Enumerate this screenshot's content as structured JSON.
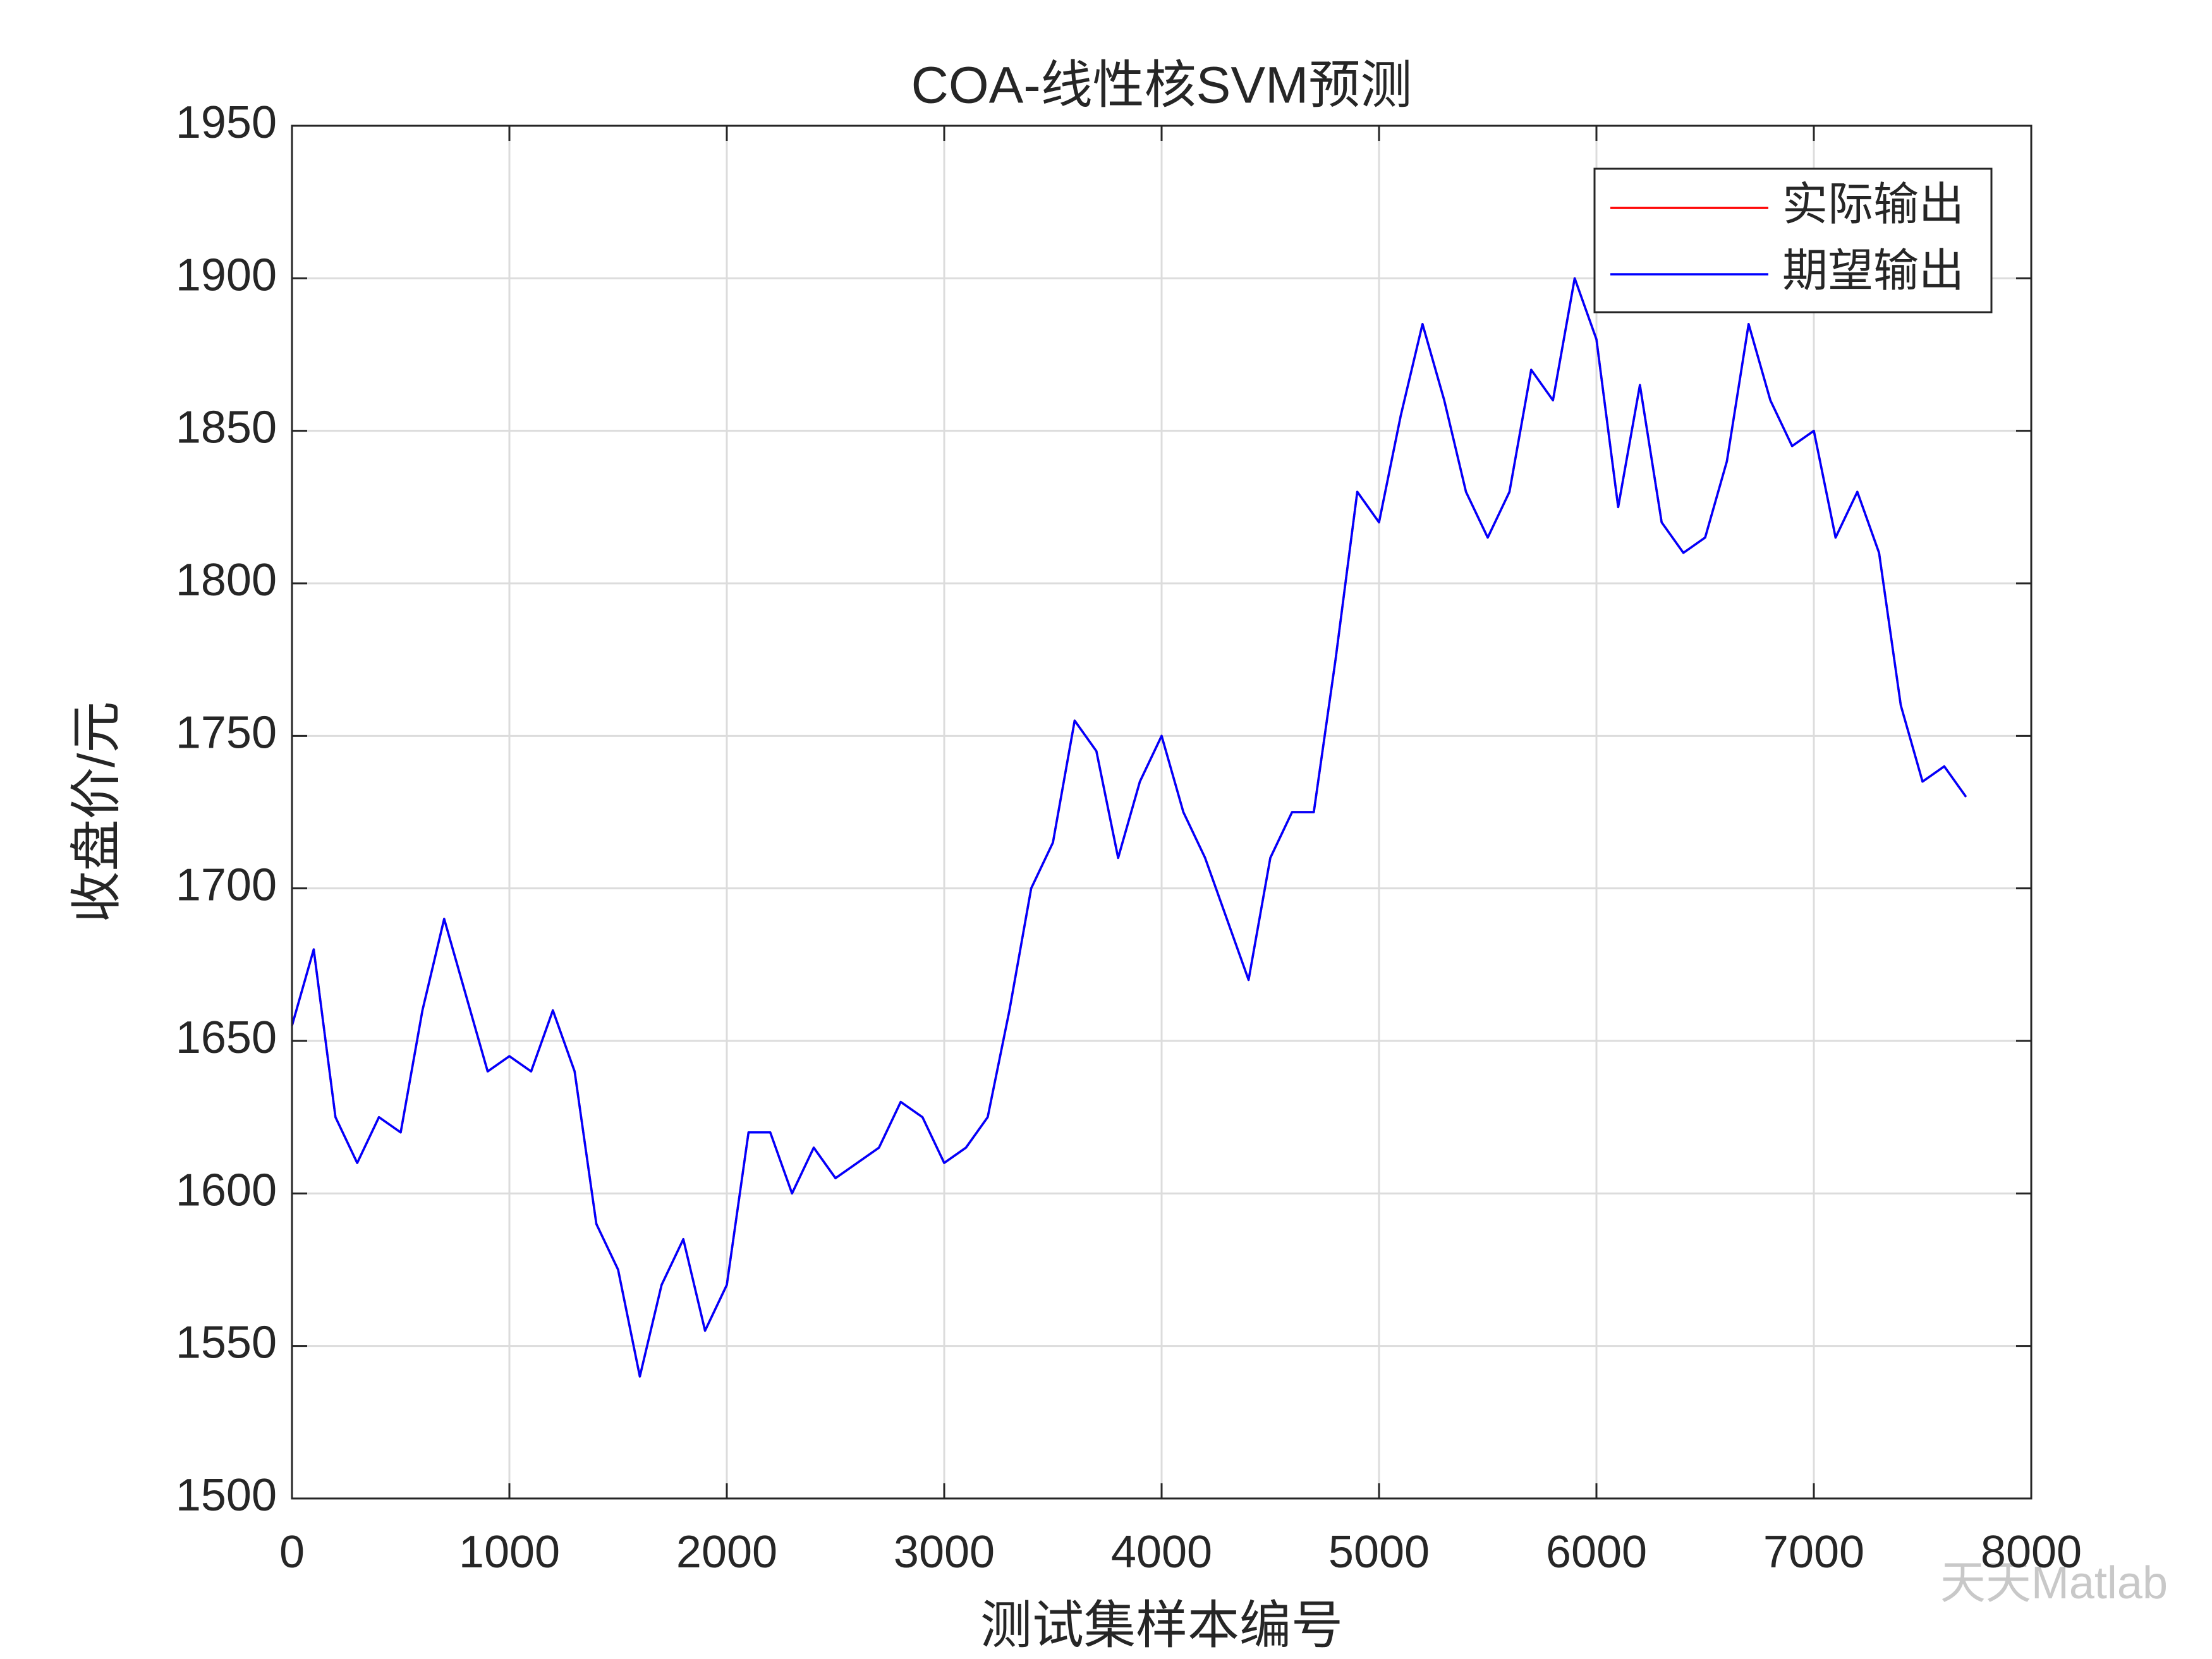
{
  "chart_data": {
    "type": "line",
    "title": "COA-线性核SVM预测",
    "xlabel": "测试集样本编号",
    "ylabel": "收盘价/元",
    "watermark": "天天Matlab",
    "x": [
      0,
      100,
      200,
      300,
      400,
      500,
      600,
      700,
      800,
      900,
      1000,
      1100,
      1200,
      1300,
      1400,
      1500,
      1600,
      1700,
      1800,
      1900,
      2000,
      2100,
      2200,
      2300,
      2400,
      2500,
      2600,
      2700,
      2800,
      2900,
      3000,
      3100,
      3200,
      3300,
      3400,
      3500,
      3600,
      3700,
      3800,
      3900,
      4000,
      4100,
      4200,
      4300,
      4400,
      4500,
      4600,
      4700,
      4800,
      4900,
      5000,
      5100,
      5200,
      5300,
      5400,
      5500,
      5600,
      5700,
      5800,
      5900,
      6000,
      6100,
      6200,
      6300,
      6400,
      6500,
      6600,
      6700,
      6800,
      6900,
      7000,
      7100,
      7200,
      7300,
      7400,
      7500,
      7600,
      7700
    ],
    "series": [
      {
        "name": "实际输出",
        "color": "#ff0000",
        "values": [
          1655,
          1680,
          1625,
          1610,
          1625,
          1620,
          1660,
          1690,
          1665,
          1640,
          1645,
          1640,
          1660,
          1640,
          1590,
          1575,
          1540,
          1570,
          1585,
          1555,
          1570,
          1620,
          1620,
          1600,
          1615,
          1605,
          1610,
          1615,
          1630,
          1625,
          1610,
          1615,
          1625,
          1660,
          1700,
          1715,
          1755,
          1745,
          1710,
          1735,
          1750,
          1725,
          1710,
          1690,
          1670,
          1710,
          1725,
          1725,
          1775,
          1830,
          1820,
          1855,
          1885,
          1860,
          1830,
          1815,
          1830,
          1870,
          1860,
          1900,
          1880,
          1825,
          1865,
          1820,
          1810,
          1815,
          1840,
          1885,
          1860,
          1845,
          1850,
          1815,
          1830,
          1810,
          1760,
          1735,
          1740,
          1730
        ]
      },
      {
        "name": "期望输出",
        "color": "#0000ff",
        "values": [
          1655,
          1680,
          1625,
          1610,
          1625,
          1620,
          1660,
          1690,
          1665,
          1640,
          1645,
          1640,
          1660,
          1640,
          1590,
          1575,
          1540,
          1570,
          1585,
          1555,
          1570,
          1620,
          1620,
          1600,
          1615,
          1605,
          1610,
          1615,
          1630,
          1625,
          1610,
          1615,
          1625,
          1660,
          1700,
          1715,
          1755,
          1745,
          1710,
          1735,
          1750,
          1725,
          1710,
          1690,
          1670,
          1710,
          1725,
          1725,
          1775,
          1830,
          1820,
          1855,
          1885,
          1860,
          1830,
          1815,
          1830,
          1870,
          1860,
          1900,
          1880,
          1825,
          1865,
          1820,
          1810,
          1815,
          1840,
          1885,
          1860,
          1845,
          1850,
          1815,
          1830,
          1810,
          1760,
          1735,
          1740,
          1730
        ]
      }
    ],
    "xlim": [
      0,
      8000
    ],
    "xticks": [
      0,
      1000,
      2000,
      3000,
      4000,
      5000,
      6000,
      7000,
      8000
    ],
    "ylim": [
      1500,
      1950
    ],
    "yticks": [
      1500,
      1550,
      1600,
      1650,
      1700,
      1750,
      1800,
      1850,
      1900,
      1950
    ],
    "grid": true,
    "legend": "upper right"
  }
}
